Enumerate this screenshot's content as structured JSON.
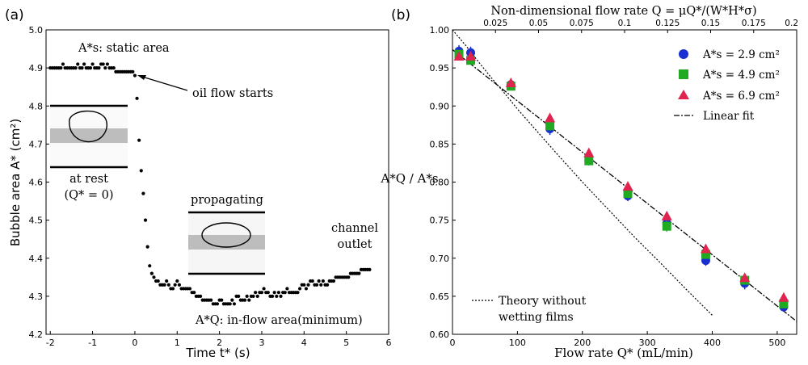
{
  "chart_data": [
    {
      "panel_label": "(a)",
      "type": "scatter",
      "xlabel": "Time t* (s)",
      "ylabel": "Bubble area A* (cm²)",
      "xlim": [
        -2.1,
        6
      ],
      "ylim": [
        4.2,
        5.0
      ],
      "x_ticks": [
        "-2",
        "-1",
        "0",
        "1",
        "2",
        "3",
        "4",
        "5",
        "6"
      ],
      "y_ticks": [
        "4.2",
        "4.3",
        "4.4",
        "4.5",
        "4.6",
        "4.7",
        "4.8",
        "4.9",
        "5.0"
      ],
      "marker_color": "#000000",
      "annotations": {
        "static_area": "A*s: static area",
        "oil_flow": "oil flow starts",
        "at_rest_1": "at rest",
        "at_rest_2": "(Q* = 0)",
        "propagating": "propagating",
        "outlet_1": "channel",
        "outlet_2": "outlet",
        "inflow_area": "A*Q: in-flow area(minimum)"
      },
      "series": [
        {
          "x": [
            -2.0,
            -1.95,
            -1.9,
            -1.85,
            -1.8,
            -1.75,
            -1.7,
            -1.65,
            -1.6,
            -1.55,
            -1.5,
            -1.45,
            -1.4,
            -1.35,
            -1.3,
            -1.25,
            -1.2,
            -1.15,
            -1.1,
            -1.05,
            -1.0,
            -0.95,
            -0.9,
            -0.85,
            -0.8,
            -0.75,
            -0.7,
            -0.65,
            -0.6,
            -0.55,
            -0.5,
            -0.45,
            -0.4,
            -0.35,
            -0.3,
            -0.25,
            -0.2,
            -0.15,
            -0.1,
            -0.05,
            0.0,
            0.05,
            0.1,
            0.15,
            0.2,
            0.25,
            0.3,
            0.35,
            0.4,
            0.45,
            0.5,
            0.55,
            0.6,
            0.65,
            0.7,
            0.75,
            0.8,
            0.85,
            0.9,
            0.95,
            1.0,
            1.05,
            1.1,
            1.15,
            1.2,
            1.25,
            1.3,
            1.35,
            1.4,
            1.45,
            1.5,
            1.55,
            1.6,
            1.65,
            1.7,
            1.75,
            1.8,
            1.85,
            1.9,
            1.95,
            2.0,
            2.05,
            2.1,
            2.15,
            2.2,
            2.25,
            2.3,
            2.35,
            2.4,
            2.45,
            2.5,
            2.55,
            2.6,
            2.65,
            2.7,
            2.75,
            2.8,
            2.85,
            2.9,
            2.95,
            3.0,
            3.05,
            3.1,
            3.15,
            3.2,
            3.25,
            3.3,
            3.35,
            3.4,
            3.45,
            3.5,
            3.55,
            3.6,
            3.65,
            3.7,
            3.75,
            3.8,
            3.85,
            3.9,
            3.95,
            4.0,
            4.05,
            4.1,
            4.15,
            4.2,
            4.25,
            4.3,
            4.35,
            4.4,
            4.45,
            4.5,
            4.55,
            4.6,
            4.65,
            4.7,
            4.75,
            4.8,
            4.85,
            4.9,
            4.95,
            5.0,
            5.05,
            5.1,
            5.15,
            5.2,
            5.25,
            5.3,
            5.35,
            5.4,
            5.45,
            5.5,
            5.55
          ],
          "y": [
            4.9,
            4.9,
            4.9,
            4.9,
            4.9,
            4.9,
            4.91,
            4.9,
            4.9,
            4.9,
            4.9,
            4.9,
            4.9,
            4.91,
            4.9,
            4.9,
            4.91,
            4.9,
            4.9,
            4.9,
            4.91,
            4.9,
            4.9,
            4.9,
            4.91,
            4.91,
            4.9,
            4.91,
            4.9,
            4.9,
            4.9,
            4.89,
            4.89,
            4.89,
            4.89,
            4.89,
            4.89,
            4.89,
            4.89,
            4.89,
            4.88,
            4.82,
            4.71,
            4.63,
            4.57,
            4.5,
            4.43,
            4.38,
            4.36,
            4.35,
            4.34,
            4.34,
            4.33,
            4.33,
            4.33,
            4.34,
            4.33,
            4.32,
            4.32,
            4.33,
            4.34,
            4.33,
            4.32,
            4.32,
            4.32,
            4.32,
            4.32,
            4.31,
            4.31,
            4.3,
            4.3,
            4.3,
            4.29,
            4.29,
            4.29,
            4.29,
            4.29,
            4.28,
            4.28,
            4.28,
            4.29,
            4.29,
            4.28,
            4.28,
            4.28,
            4.28,
            4.29,
            4.28,
            4.3,
            4.3,
            4.29,
            4.29,
            4.29,
            4.3,
            4.29,
            4.3,
            4.3,
            4.31,
            4.3,
            4.31,
            4.31,
            4.32,
            4.31,
            4.31,
            4.3,
            4.3,
            4.31,
            4.3,
            4.31,
            4.3,
            4.31,
            4.31,
            4.32,
            4.31,
            4.31,
            4.31,
            4.31,
            4.31,
            4.32,
            4.33,
            4.33,
            4.32,
            4.33,
            4.34,
            4.34,
            4.33,
            4.33,
            4.34,
            4.33,
            4.34,
            4.33,
            4.33,
            4.34,
            4.34,
            4.34,
            4.35,
            4.35,
            4.35,
            4.35,
            4.35,
            4.35,
            4.35,
            4.36,
            4.36,
            4.36,
            4.36,
            4.36,
            4.37,
            4.37,
            4.37,
            4.37,
            4.37
          ]
        }
      ]
    },
    {
      "panel_label": "(b)",
      "type": "scatter",
      "xlabel": "Flow rate Q* (mL/min)",
      "ylabel": "A*Q / A*s",
      "top_xlabel": "Non-dimensional flow rate Q = μQ*/(W*H*σ)",
      "xlim": [
        0,
        530
      ],
      "ylim": [
        0.6,
        1.0
      ],
      "top_xlim": [
        0,
        0.2
      ],
      "x_ticks": [
        "0",
        "100",
        "200",
        "300",
        "400",
        "500"
      ],
      "y_ticks": [
        "0.60",
        "0.65",
        "0.70",
        "0.75",
        "0.80",
        "0.85",
        "0.90",
        "0.95",
        "1.00"
      ],
      "top_ticks": [
        "0.025",
        "0.05",
        "0.075",
        "0.1",
        "0.125",
        "0.15",
        "0.175",
        "0.2"
      ],
      "legend_position": "top-right",
      "categories": [
        10,
        28,
        90,
        150,
        210,
        270,
        330,
        390,
        450,
        510
      ],
      "series": [
        {
          "name": "A*s = 2.9 cm²",
          "marker": "circle",
          "color": "#1a2fd1",
          "values": [
            0.972,
            0.97,
            0.928,
            0.87,
            0.828,
            0.782,
            0.746,
            0.697,
            0.667,
            0.636
          ],
          "error": [
            0.008,
            0.008,
            0.007,
            0.008,
            0.006,
            0.007,
            0.008,
            0.007,
            0.008,
            0.006
          ]
        },
        {
          "name": "A*s = 4.9 cm²",
          "marker": "square",
          "color": "#1faa22",
          "values": [
            0.968,
            0.96,
            0.926,
            0.874,
            0.828,
            0.785,
            0.742,
            0.705,
            0.671,
            0.64
          ],
          "error": [
            0.005,
            0.005,
            0.005,
            0.006,
            0.005,
            0.006,
            0.007,
            0.005,
            0.005,
            0.005
          ]
        },
        {
          "name": "A*s = 6.9 cm²",
          "marker": "triangle",
          "color": "#e0234f",
          "values": [
            0.965,
            0.965,
            0.93,
            0.884,
            0.838,
            0.794,
            0.755,
            0.712,
            0.674,
            0.648
          ],
          "error": [
            0.004,
            0.004,
            0.004,
            0.004,
            0.004,
            0.004,
            0.004,
            0.004,
            0.004,
            0.004
          ]
        }
      ],
      "linear_fit": {
        "name": "Linear fit",
        "x": [
          0,
          530
        ],
        "y": [
          0.974,
          0.617
        ]
      },
      "theory": {
        "name_1": "Theory without",
        "name_2": "wetting films",
        "x": [
          0,
          20,
          40,
          60,
          80,
          100,
          130,
          160,
          200,
          240,
          280,
          320,
          360,
          400
        ],
        "y": [
          1.0,
          0.98,
          0.958,
          0.937,
          0.917,
          0.896,
          0.867,
          0.838,
          0.8,
          0.764,
          0.728,
          0.694,
          0.659,
          0.625
        ]
      }
    }
  ]
}
